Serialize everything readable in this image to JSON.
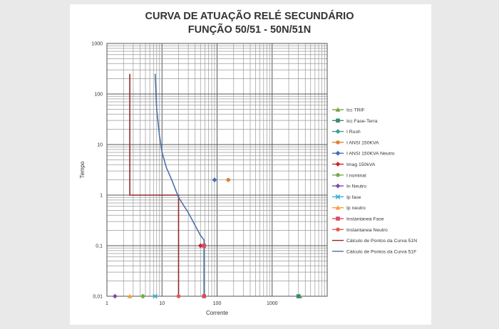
{
  "chart_data": {
    "type": "scatter",
    "title": "CURVA DE ATUAÇÃO RELÉ SECUNDÁRIO",
    "subtitle": "FUNÇÃO 50/51 - 50N/51N",
    "xlabel": "Corrente",
    "ylabel": "Tempo",
    "x_scale": "log",
    "y_scale": "log",
    "xlim": [
      1,
      10000
    ],
    "ylim": [
      0.01,
      1000
    ],
    "x_ticks": [
      "1",
      "10",
      "100",
      "1000"
    ],
    "y_ticks": [
      "1000",
      "100",
      "10",
      "1",
      "0,1",
      "0,01"
    ],
    "grid": true,
    "legend_position": "right",
    "series": [
      {
        "name": "Icc TRIF",
        "kind": "marker",
        "marker": "triangle",
        "color": "#77a33a",
        "points": [
          [
            3200,
            0.01
          ]
        ]
      },
      {
        "name": "Icc Fase-Terra",
        "kind": "marker",
        "marker": "square",
        "color": "#3b8878",
        "points": [
          [
            3000,
            0.01
          ]
        ]
      },
      {
        "name": "I Rush",
        "kind": "marker",
        "marker": "diamond",
        "color": "#3a9999",
        "points": [
          [
            4.5,
            0.01
          ]
        ]
      },
      {
        "name": "I ANSI 150KVA",
        "kind": "marker",
        "marker": "circle",
        "color": "#e08233",
        "points": [
          [
            160,
            2
          ]
        ]
      },
      {
        "name": "I ANSI 150KVA Neutro",
        "kind": "marker",
        "marker": "diamond",
        "color": "#3f6db3",
        "points": [
          [
            90,
            2
          ]
        ]
      },
      {
        "name": "Imag 150kVA",
        "kind": "marker",
        "marker": "diamond",
        "color": "#cc2525",
        "points": [
          [
            50,
            0.1
          ]
        ]
      },
      {
        "name": "I nominal",
        "kind": "marker",
        "marker": "circle",
        "color": "#7aaa4e",
        "points": [
          [
            4.5,
            0.01
          ]
        ]
      },
      {
        "name": "In Neutro",
        "kind": "marker",
        "marker": "diamond",
        "color": "#7750a5",
        "points": [
          [
            1.4,
            0.01
          ]
        ]
      },
      {
        "name": "Ip fase",
        "kind": "marker",
        "marker": "x",
        "color": "#3aaed1",
        "points": [
          [
            7.5,
            0.01
          ]
        ]
      },
      {
        "name": "Ip neutro",
        "kind": "marker",
        "marker": "triangle",
        "color": "#f1a23d",
        "points": [
          [
            2.6,
            0.01
          ]
        ]
      },
      {
        "name": "Instantanea Fase",
        "kind": "marker",
        "marker": "square",
        "color": "#d64b66",
        "points": [
          [
            58,
            0.01
          ],
          [
            58,
            0.1
          ]
        ]
      },
      {
        "name": "Instantanea Neutro",
        "kind": "marker",
        "marker": "circle",
        "color": "#e05a5a",
        "points": [
          [
            20,
            0.01
          ]
        ]
      },
      {
        "name": "Cálculo de Pontos da Curva 51N",
        "kind": "line",
        "color": "#8f2a2a",
        "points": [
          [
            2.6,
            250
          ],
          [
            2.6,
            1
          ],
          [
            20,
            1
          ],
          [
            20,
            0.01
          ]
        ]
      },
      {
        "name": "Cálculo de Pontos da Curva 51F",
        "kind": "line",
        "color": "#4d72a8",
        "points": [
          [
            7.5,
            250
          ],
          [
            8,
            50
          ],
          [
            9,
            15
          ],
          [
            10,
            7
          ],
          [
            12,
            3.5
          ],
          [
            15,
            2
          ],
          [
            20,
            0.9
          ],
          [
            30,
            0.45
          ],
          [
            40,
            0.25
          ],
          [
            50,
            0.16
          ],
          [
            58,
            0.13
          ],
          [
            58,
            0.01
          ]
        ]
      }
    ]
  }
}
